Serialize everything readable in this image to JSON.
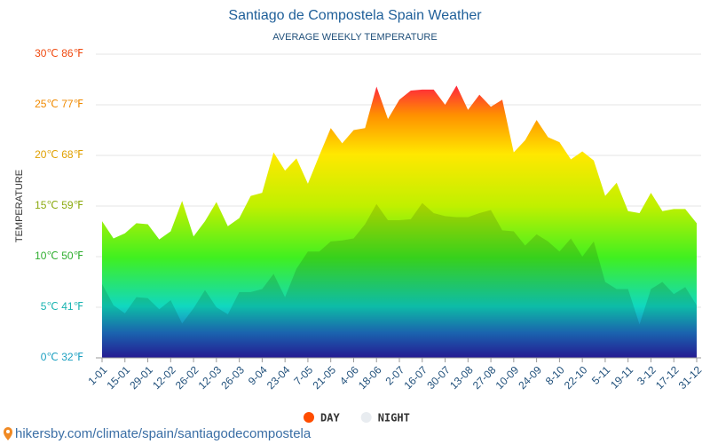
{
  "chart_data": {
    "type": "area",
    "title": "Santiago de Compostela Spain Weather",
    "subtitle": "AVERAGE WEEKLY TEMPERATURE",
    "y_label": "TEMPERATURE",
    "source": "hikersby.com/climate/spain/santiagodecompostela",
    "categories": [
      "1-01",
      null,
      "15-01",
      null,
      "29-01",
      null,
      "12-02",
      null,
      "26-02",
      null,
      "12-03",
      null,
      "26-03",
      null,
      "9-04",
      null,
      "23-04",
      null,
      "7-05",
      null,
      "21-05",
      null,
      "4-06",
      null,
      "18-06",
      null,
      "2-07",
      null,
      "16-07",
      null,
      "30-07",
      null,
      "13-08",
      null,
      "27-08",
      null,
      "10-09",
      null,
      "24-09",
      null,
      "8-10",
      null,
      "22-10",
      null,
      "5-11",
      null,
      "19-11",
      null,
      "3-12",
      null,
      "17-12",
      null,
      "31-12"
    ],
    "series": [
      {
        "name": "DAY",
        "color": "#ff4d00",
        "values": [
          13.5,
          11.8,
          12.3,
          13.3,
          13.2,
          11.7,
          12.5,
          15.5,
          12.0,
          13.5,
          15.4,
          13.0,
          13.8,
          16.0,
          16.3,
          20.3,
          18.5,
          19.7,
          17.2,
          20.0,
          22.7,
          21.2,
          22.5,
          22.7,
          26.8,
          23.6,
          25.5,
          26.4,
          26.5,
          26.5,
          25.0,
          26.9,
          24.5,
          26.0,
          24.8,
          25.5,
          20.3,
          21.5,
          23.5,
          21.8,
          21.3,
          19.6,
          20.4,
          19.5,
          16.0,
          17.3,
          14.5,
          14.3,
          16.3,
          14.5,
          14.7,
          14.7,
          13.3
        ]
      },
      {
        "name": "NIGHT",
        "color": "#e8ecf0",
        "values": [
          7.3,
          5.2,
          4.4,
          6.0,
          5.9,
          4.8,
          5.7,
          3.4,
          4.9,
          6.7,
          5.0,
          4.3,
          6.5,
          6.5,
          6.8,
          8.3,
          6.0,
          8.8,
          10.5,
          10.5,
          11.5,
          11.6,
          11.8,
          13.2,
          15.2,
          13.6,
          13.6,
          13.7,
          15.3,
          14.3,
          14.0,
          13.9,
          13.9,
          14.3,
          14.6,
          12.6,
          12.5,
          11.1,
          12.2,
          11.5,
          10.5,
          11.8,
          10.0,
          11.5,
          7.5,
          6.8,
          6.8,
          3.3,
          6.8,
          7.5,
          6.3,
          7.0,
          5.2
        ]
      }
    ],
    "ylim": [
      0,
      30
    ],
    "yticks": [
      {
        "value": 0,
        "label": "0℃ 32℉"
      },
      {
        "value": 5,
        "label": "5℃ 41℉"
      },
      {
        "value": 10,
        "label": "10℃ 50℉"
      },
      {
        "value": 15,
        "label": "15℃ 59℉"
      },
      {
        "value": 20,
        "label": "20℃ 68℉"
      },
      {
        "value": 25,
        "label": "25℃ 77℉"
      },
      {
        "value": 30,
        "label": "30℃ 86℉"
      }
    ],
    "grid": true
  }
}
